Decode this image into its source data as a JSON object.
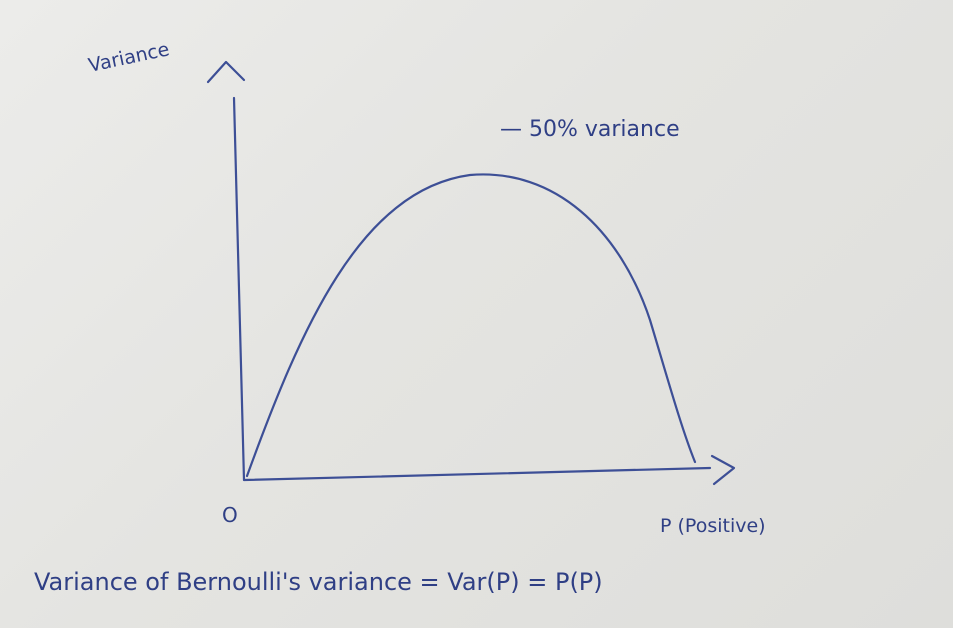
{
  "diagram": {
    "y_axis_label": "Variance",
    "x_axis_label": "P (Positive)",
    "origin_label": "O",
    "peak_annotation": "— 50% variance",
    "caption": "Variance of Bernoulli's variance = Var(P) = P(P)"
  },
  "ink_color": "#3d4f96"
}
